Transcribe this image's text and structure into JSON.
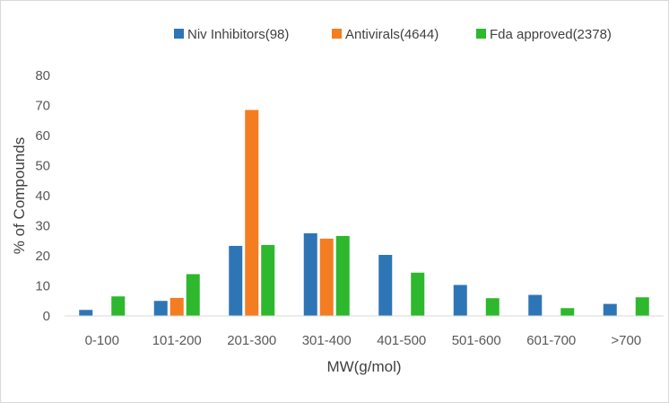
{
  "chart_data": {
    "type": "bar",
    "categories": [
      "0-100",
      "101-200",
      "201-300",
      "301-400",
      "401-500",
      "501-600",
      "601-700",
      ">700"
    ],
    "series": [
      {
        "name": "Niv Inhibitors(98)",
        "color": "#2e75b6",
        "values": [
          2,
          5,
          23.3,
          27.5,
          20.3,
          10.3,
          7,
          4
        ]
      },
      {
        "name": "Antivirals(4644)",
        "color": "#f47c21",
        "values": [
          0,
          6,
          68.5,
          25.7,
          0,
          0,
          0,
          0
        ]
      },
      {
        "name": "Fda approved(2378)",
        "color": "#2db82d",
        "values": [
          6.5,
          13.9,
          23.6,
          26.6,
          14.4,
          5.9,
          2.6,
          6.2
        ]
      }
    ],
    "xlabel": "MW(g/mol)",
    "ylabel": "% of Compounds",
    "ylim": [
      0,
      80
    ],
    "yticks": [
      0,
      10,
      20,
      30,
      40,
      50,
      60,
      70,
      80
    ],
    "grid": false,
    "legend": "top"
  }
}
